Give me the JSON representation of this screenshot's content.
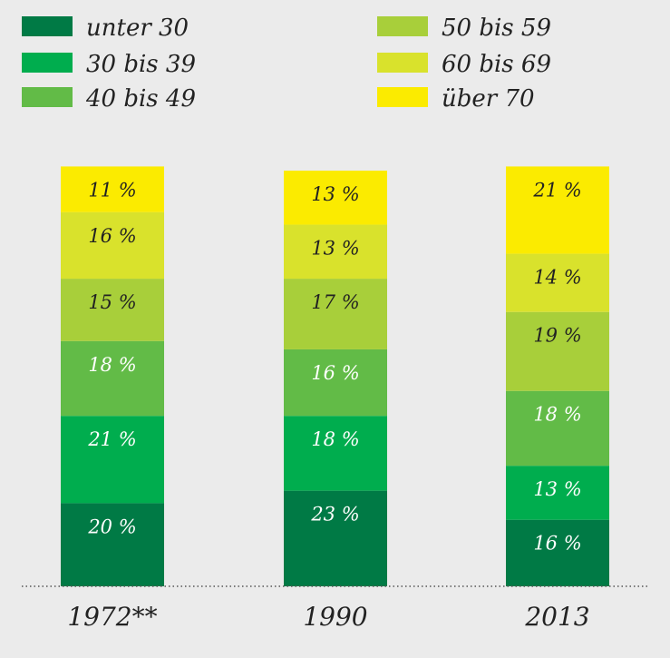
{
  "chart_data": {
    "type": "bar",
    "stacked": true,
    "normalized": true,
    "categories": [
      "1972**",
      "1990",
      "2013"
    ],
    "series": [
      {
        "name": "unter 30",
        "color": "#007a45",
        "values": [
          20,
          23,
          16
        ],
        "labels": [
          "20 %",
          "23 %",
          "16 %"
        ]
      },
      {
        "name": "30 bis 39",
        "color": "#00ad4e",
        "values": [
          21,
          18,
          13
        ],
        "labels": [
          "21 %",
          "18 %",
          "13 %"
        ]
      },
      {
        "name": "40 bis 49",
        "color": "#62bb47",
        "values": [
          18,
          16,
          18
        ],
        "labels": [
          "18 %",
          "16 %",
          "18 %"
        ]
      },
      {
        "name": "50 bis 59",
        "color": "#a8cf3a",
        "values": [
          15,
          17,
          19
        ],
        "labels": [
          "15 %",
          "17 %",
          "19 %"
        ]
      },
      {
        "name": "60 bis 69",
        "color": "#d9e22c",
        "values": [
          16,
          13,
          14
        ],
        "labels": [
          "16 %",
          "13 %",
          "14 %"
        ]
      },
      {
        "name": "über 70",
        "color": "#fbeb00",
        "values": [
          11,
          13,
          21
        ],
        "labels": [
          "11 %",
          "13 %",
          "21 %"
        ]
      }
    ],
    "ylim": [
      0,
      100
    ],
    "grid": false,
    "legend_position": "top",
    "baseline_style": "dotted"
  }
}
